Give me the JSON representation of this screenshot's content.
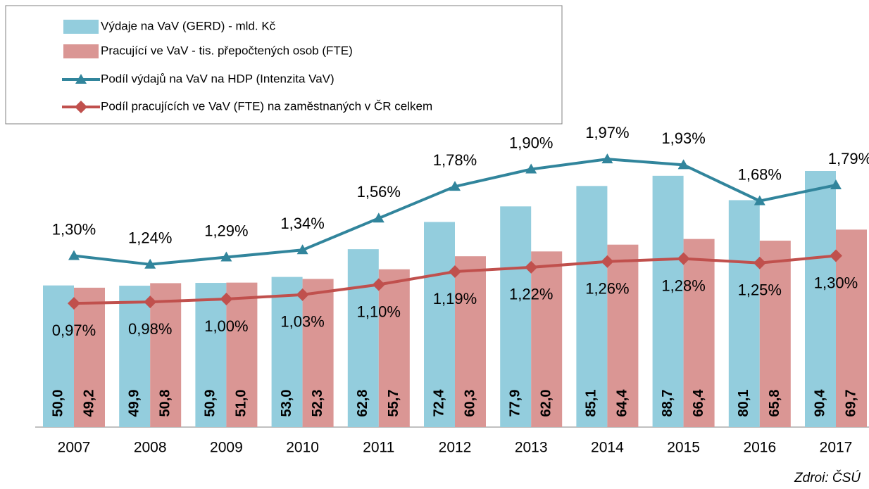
{
  "chart_data": {
    "type": "bar",
    "categories": [
      "2007",
      "2008",
      "2009",
      "2010",
      "2011",
      "2012",
      "2013",
      "2014",
      "2015",
      "2016",
      "2017"
    ],
    "series": [
      {
        "name": "Výdaje na VaV (GERD) - mld. Kč",
        "type": "bar",
        "color": "#93cddd",
        "values": [
          50.0,
          49.9,
          50.9,
          53.0,
          62.8,
          72.4,
          77.9,
          85.1,
          88.7,
          80.1,
          90.4
        ],
        "value_labels": [
          "50,0",
          "49,9",
          "50,9",
          "53,0",
          "62,8",
          "72,4",
          "77,9",
          "85,1",
          "88,7",
          "80,1",
          "90,4"
        ]
      },
      {
        "name": "Pracující ve VaV - tis. přepočtených osob (FTE)",
        "type": "bar",
        "color": "#da9694",
        "values": [
          49.2,
          50.8,
          51.0,
          52.3,
          55.7,
          60.3,
          62.0,
          64.4,
          66.4,
          65.8,
          69.7
        ],
        "value_labels": [
          "49,2",
          "50,8",
          "51,0",
          "52,3",
          "55,7",
          "60,3",
          "62,0",
          "64,4",
          "66,4",
          "65,8",
          "69,7"
        ]
      },
      {
        "name": "Podíl výdajů na VaV na HDP (Intenzita VaV)",
        "type": "line",
        "axis": "y2",
        "color": "#31859c",
        "marker": "triangle",
        "values": [
          1.3,
          1.24,
          1.29,
          1.34,
          1.56,
          1.78,
          1.9,
          1.97,
          1.93,
          1.68,
          1.79
        ],
        "value_labels": [
          "1,30%",
          "1,24%",
          "1,29%",
          "1,34%",
          "1,56%",
          "1,78%",
          "1,90%",
          "1,97%",
          "1,93%",
          "1,68%",
          "1,79%"
        ]
      },
      {
        "name": "Podíl pracujících ve VaV (FTE) na zaměstnaných v ČR celkem",
        "type": "line",
        "axis": "y2",
        "color": "#c0504d",
        "marker": "diamond",
        "values": [
          0.97,
          0.98,
          1.0,
          1.03,
          1.1,
          1.19,
          1.22,
          1.26,
          1.28,
          1.25,
          1.3
        ],
        "value_labels": [
          "0,97%",
          "0,98%",
          "1,00%",
          "1,03%",
          "1,10%",
          "1,19%",
          "1,22%",
          "1,26%",
          "1,28%",
          "1,25%",
          "1,30%"
        ]
      }
    ],
    "legend": "top-left",
    "source": "Zdroi: ČSÚ"
  }
}
